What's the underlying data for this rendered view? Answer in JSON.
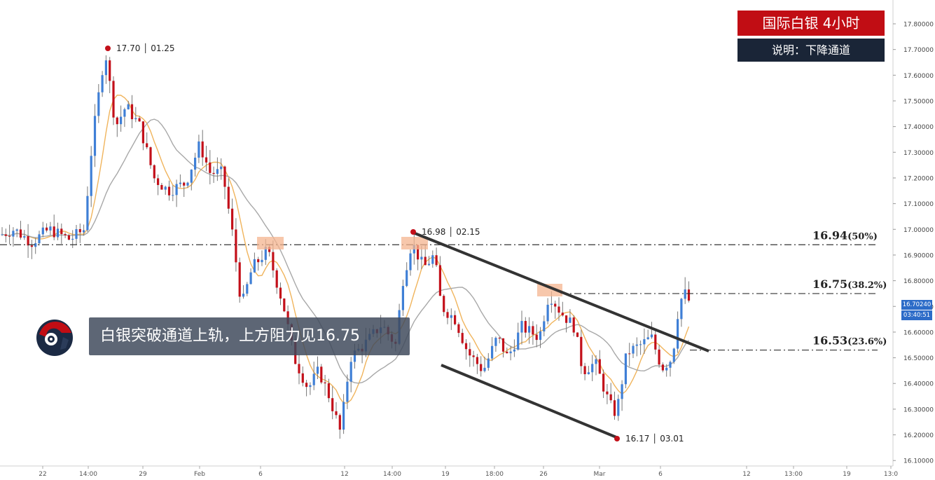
{
  "header": {
    "title": "国际白银  4小时",
    "subtitle": "说明：下降通道"
  },
  "banner": {
    "text": "白银突破通道上轨，上方阻力见16.75"
  },
  "price_tag": {
    "price": "16.70240",
    "countdown": "03:40:51"
  },
  "colors": {
    "up_candle": "#3f7fd6",
    "down_candle": "#c3101a",
    "ma_fast": "#f0b45c",
    "ma_slow": "#a8a8a8",
    "title_bg": "#c10d14",
    "subtitle_bg": "#1a2537",
    "channel_line": "#333333",
    "resistance_box": "#f4b48f"
  },
  "chart_data": {
    "type": "candlestick",
    "instrument": "国际白银",
    "timeframe": "4小时",
    "y_axis": {
      "ylim": [
        16.07,
        17.88
      ],
      "ticks": [
        "17.80000",
        "17.70000",
        "17.60000",
        "17.50000",
        "17.40000",
        "17.30000",
        "17.20000",
        "17.10000",
        "17.00000",
        "16.90000",
        "16.80000",
        "16.70000",
        "16.60000",
        "16.50000",
        "16.40000",
        "16.30000",
        "16.20000",
        "16.10000"
      ]
    },
    "x_axis": {
      "ticks": [
        "22",
        "14:00",
        "29",
        "Feb",
        "6",
        "12",
        "14:00",
        "19",
        "18:00",
        "26",
        "Mar",
        "6",
        "12",
        "13:00",
        "19",
        "13:0"
      ]
    },
    "annotations": [
      {
        "label": "17.70 │ 01.25",
        "price": 17.7
      },
      {
        "label": "16.98 │ 02.15",
        "price": 16.98
      },
      {
        "label": "16.17 │ 03.01",
        "price": 16.17
      }
    ],
    "fib_levels": [
      {
        "price": 16.94,
        "value": "16.94",
        "pct": "(50%)"
      },
      {
        "price": 16.75,
        "value": "16.75",
        "pct": "(38.2%)"
      },
      {
        "price": 16.53,
        "value": "16.53",
        "pct": "(23.6%)"
      }
    ],
    "channel": {
      "upper": {
        "from": [
          16.98,
          "02.15"
        ],
        "to": [
          16.53,
          "03.06"
        ]
      },
      "lower": {
        "from": [
          16.48,
          "02.14"
        ],
        "to": [
          16.17,
          "03.01"
        ]
      }
    },
    "last_price": 16.7024
  }
}
